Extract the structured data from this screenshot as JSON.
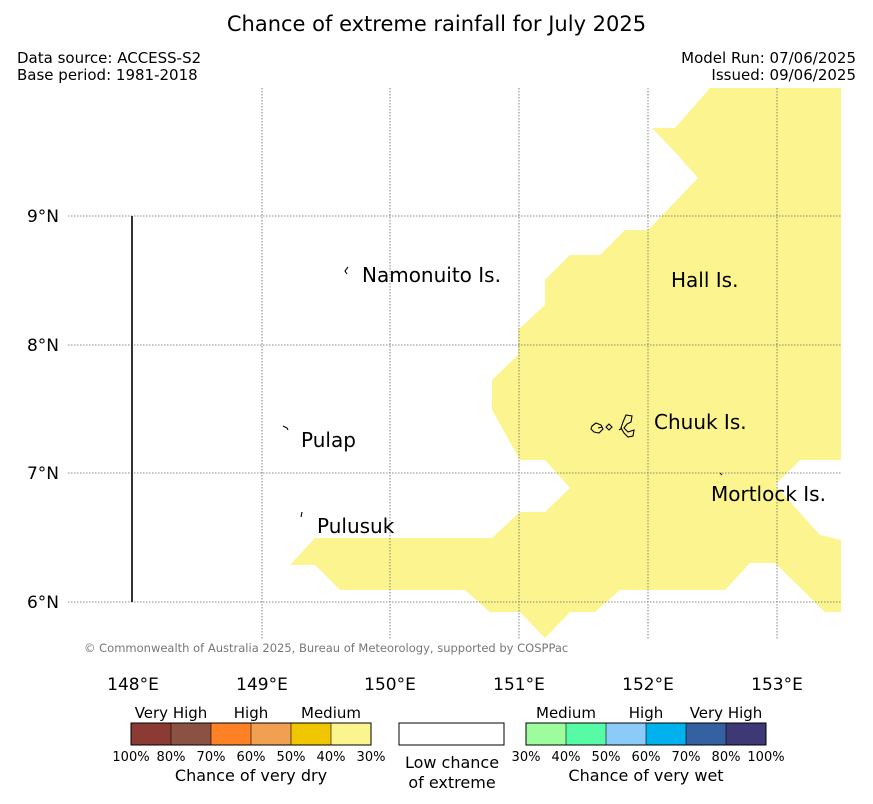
{
  "title": "Chance of extreme rainfall for July 2025",
  "meta": {
    "data_source": "Data source: ACCESS-S2",
    "base_period": "Base period: 1981-2018",
    "model_run": "Model Run: 07/06/2025",
    "issued": "Issued: 09/06/2025"
  },
  "map": {
    "lon_labels": [
      "148°E",
      "149°E",
      "150°E",
      "151°E",
      "152°E",
      "153°E"
    ],
    "lat_labels": [
      "9°N",
      "8°N",
      "7°N",
      "6°N"
    ],
    "places": {
      "namonuito": "Namonuito Is.",
      "hall": "Hall Is.",
      "chuuk": "Chuuk Is.",
      "pulap": "Pulap",
      "mortlock": "Mortlock Is.",
      "pulusuk": "Pulusuk"
    },
    "copyright": "© Commonwealth of Australia 2025, Bureau of Meteorology, supported by COSPPac",
    "overlay_color": "#fbf48f",
    "overlay_category": "Chance of very dry 30%-40%"
  },
  "legend": {
    "dry": {
      "categories": [
        "Very High",
        "High",
        "Medium"
      ],
      "colors": [
        "#8b3a34",
        "#8b5243",
        "#ff8125",
        "#f0a050",
        "#f0c600",
        "#fbf48f"
      ],
      "ticks": [
        "100%",
        "80%",
        "70%",
        "60%",
        "50%",
        "40%",
        "30%"
      ],
      "label": "Chance of very dry"
    },
    "low": {
      "line1": "Low chance",
      "line2": "of extreme"
    },
    "wet": {
      "categories": [
        "Medium",
        "High",
        "Very High"
      ],
      "colors": [
        "#9dfc9b",
        "#57fba5",
        "#8ccbf8",
        "#00b1ee",
        "#3461a2",
        "#3d3977"
      ],
      "ticks": [
        "30%",
        "40%",
        "50%",
        "60%",
        "70%",
        "80%",
        "100%"
      ],
      "label": "Chance of very wet"
    }
  }
}
